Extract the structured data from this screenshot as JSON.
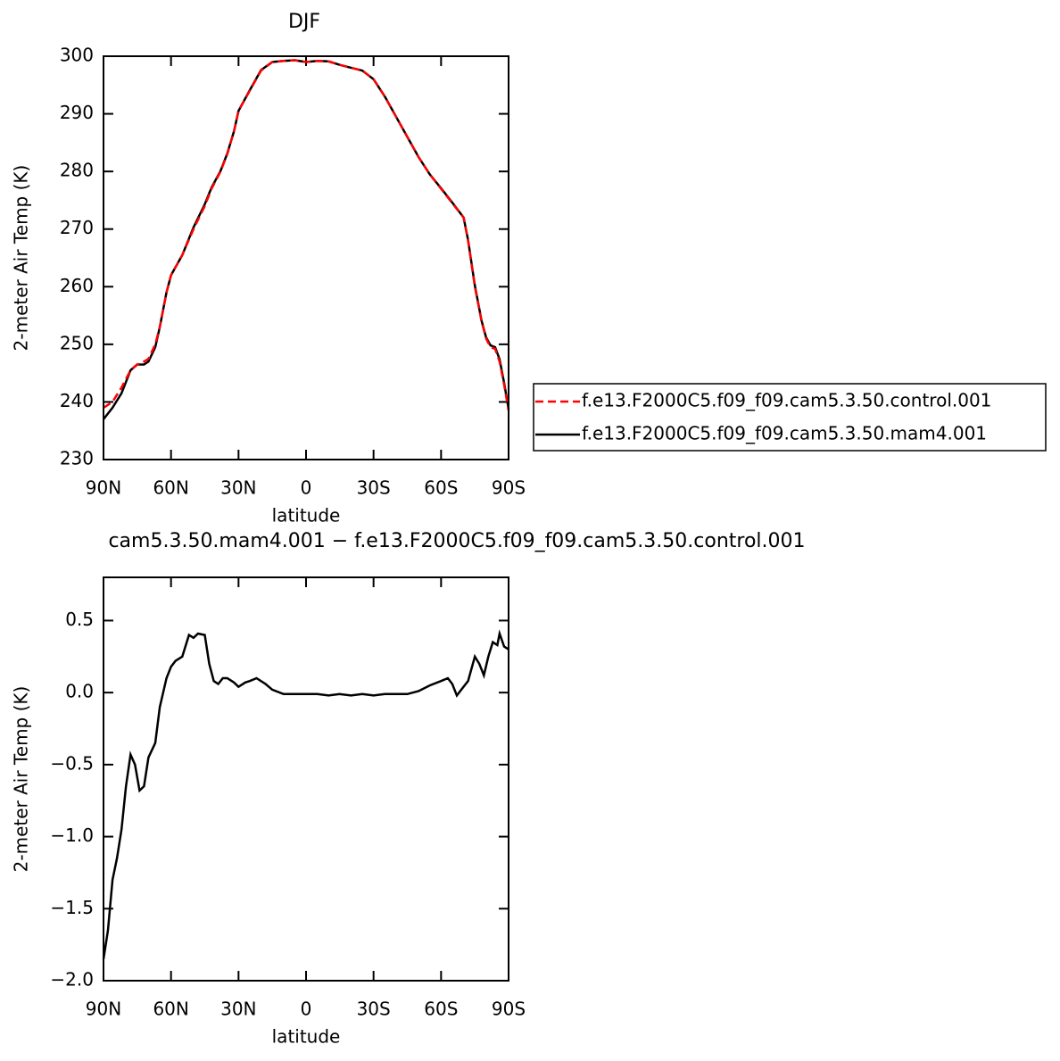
{
  "chart_data": [
    {
      "type": "line",
      "title": "DJF",
      "xlabel": "latitude",
      "ylabel": "2-meter Air Temp (K)",
      "x": [
        90,
        86,
        82,
        78,
        75,
        72,
        70,
        67,
        65,
        62,
        60,
        55,
        50,
        45,
        42,
        38,
        35,
        32,
        30,
        25,
        20,
        15,
        10,
        5,
        0,
        -5,
        -10,
        -15,
        -20,
        -25,
        -30,
        -35,
        -40,
        -45,
        -50,
        -55,
        -60,
        -65,
        -70,
        -72,
        -75,
        -78,
        -80,
        -82,
        -84,
        -86,
        -88,
        -90
      ],
      "series": [
        {
          "name": "f.e13.F2000C5.f09_f09.cam5.3.50.control.001",
          "color": "#ff0000",
          "linestyle": "dashed",
          "values": [
            239,
            240,
            242.5,
            245.5,
            246.5,
            247,
            247.5,
            250,
            253,
            259,
            262,
            265.5,
            270,
            274,
            277,
            280,
            283,
            287,
            290.5,
            294,
            297.5,
            299,
            299.2,
            299.3,
            299,
            299.2,
            299.1,
            298.5,
            298,
            297.5,
            296,
            293,
            289.5,
            286,
            282.5,
            279.5,
            277,
            274.5,
            272,
            268,
            260,
            254,
            251,
            249.5,
            249.2,
            247,
            243,
            238.5
          ]
        },
        {
          "name": "f.e13.F2000C5.f09_f09.cam5.3.50.mam4.001",
          "color": "#000000",
          "linestyle": "solid",
          "values": [
            237,
            239,
            241.5,
            245.5,
            246.5,
            246.5,
            247,
            249.5,
            253,
            259,
            262,
            265.5,
            270.3,
            274.3,
            277.2,
            280.1,
            283.1,
            287,
            290.5,
            294.1,
            297.6,
            299,
            299.2,
            299.3,
            299,
            299.2,
            299.1,
            298.5,
            298,
            297.5,
            296,
            293,
            289.5,
            286,
            282.5,
            279.5,
            277.1,
            274.6,
            272,
            268.1,
            260.2,
            254.1,
            251.2,
            249.8,
            249.5,
            247.4,
            243.3,
            238.8
          ]
        }
      ],
      "xlim": [
        90,
        -90
      ],
      "xticks": [
        {
          "value": 90,
          "label": "90N"
        },
        {
          "value": 60,
          "label": "60N"
        },
        {
          "value": 30,
          "label": "30N"
        },
        0,
        {
          "value": -30,
          "label": "30S"
        },
        {
          "value": -60,
          "label": "60S"
        },
        {
          "value": -90,
          "label": "90S"
        }
      ],
      "ylim": [
        230,
        300
      ],
      "yticks": [
        230,
        240,
        250,
        260,
        270,
        280,
        290,
        300
      ],
      "legend": "right"
    },
    {
      "type": "line",
      "title": "cam5.3.50.mam4.001 − f.e13.F2000C5.f09_f09.cam5.3.50.control.001",
      "xlabel": "latitude",
      "ylabel": "2-meter Air Temp (K)",
      "x": [
        90,
        88,
        86,
        84,
        82,
        80,
        78,
        76,
        74,
        72,
        70,
        67,
        65,
        62,
        60,
        58,
        55,
        52,
        50,
        48,
        45,
        43,
        41,
        39,
        37,
        35,
        32,
        30,
        27,
        25,
        22,
        18,
        15,
        10,
        5,
        0,
        -5,
        -10,
        -15,
        -20,
        -25,
        -30,
        -35,
        -40,
        -45,
        -50,
        -55,
        -60,
        -63,
        -65,
        -67,
        -69,
        -72,
        -75,
        -77,
        -79,
        -81,
        -83,
        -85,
        -86,
        -88,
        -90
      ],
      "values": [
        -1.85,
        -1.65,
        -1.3,
        -1.15,
        -0.95,
        -0.65,
        -0.43,
        -0.5,
        -0.68,
        -0.65,
        -0.45,
        -0.35,
        -0.1,
        0.1,
        0.18,
        0.22,
        0.25,
        0.4,
        0.38,
        0.41,
        0.4,
        0.2,
        0.08,
        0.06,
        0.1,
        0.1,
        0.07,
        0.04,
        0.07,
        0.08,
        0.1,
        0.06,
        0.02,
        -0.01,
        -0.01,
        -0.01,
        -0.01,
        -0.02,
        -0.01,
        -0.02,
        -0.01,
        -0.02,
        -0.01,
        -0.01,
        -0.01,
        0.01,
        0.05,
        0.08,
        0.1,
        0.06,
        -0.02,
        0.02,
        0.08,
        0.25,
        0.2,
        0.12,
        0.25,
        0.35,
        0.33,
        0.41,
        0.32,
        0.3
      ],
      "color": "#000000",
      "xlim": [
        90,
        -90
      ],
      "xticks": [
        {
          "value": 90,
          "label": "90N"
        },
        {
          "value": 60,
          "label": "60N"
        },
        {
          "value": 30,
          "label": "30N"
        },
        0,
        {
          "value": -30,
          "label": "30S"
        },
        {
          "value": -60,
          "label": "60S"
        },
        {
          "value": -90,
          "label": "90S"
        }
      ],
      "ylim": [
        -2.0,
        0.8
      ],
      "yticks": [
        {
          "value": -2,
          "label": "−2.0"
        },
        {
          "value": -1.5,
          "label": "−1.5"
        },
        {
          "value": -1,
          "label": "−1.0"
        },
        {
          "value": -0.5,
          "label": "−0.5"
        },
        {
          "value": 0,
          "label": "0.0"
        },
        0.5
      ]
    }
  ]
}
